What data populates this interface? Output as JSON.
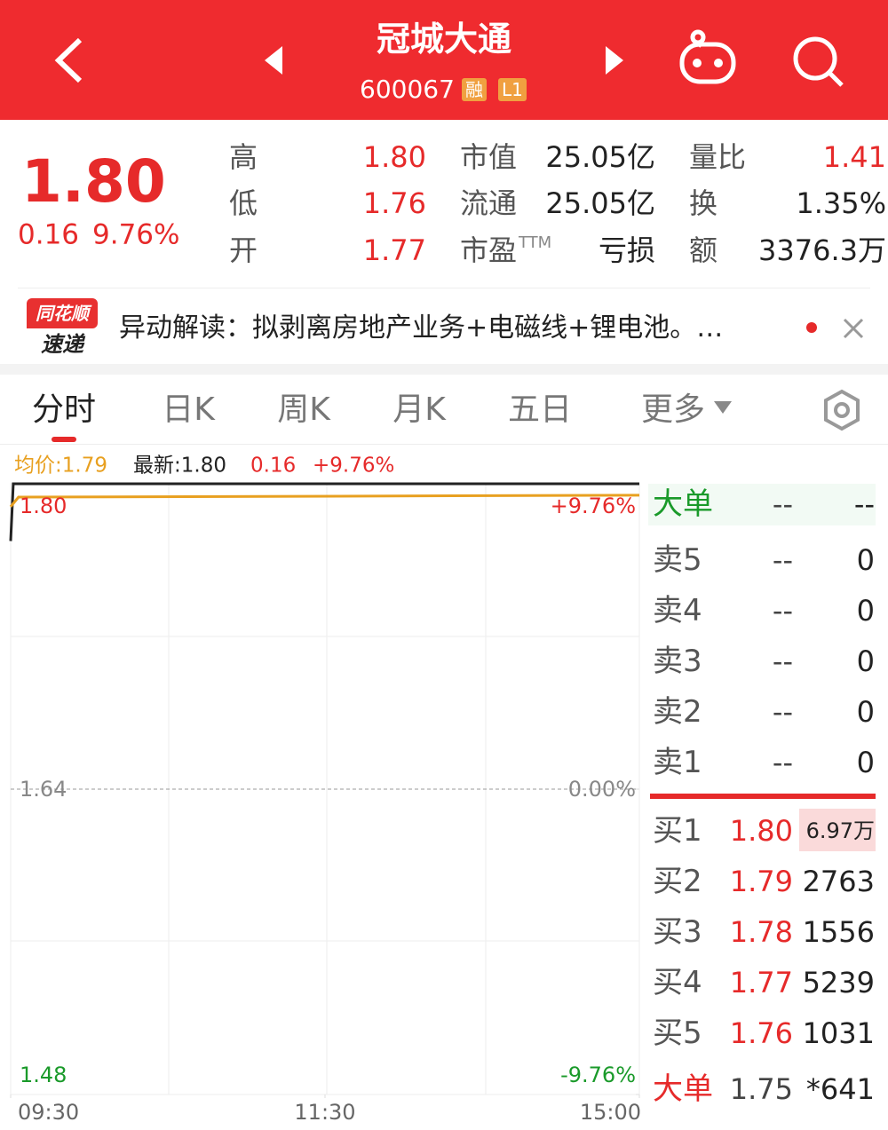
{
  "header": {
    "title": "冠城大通",
    "code": "600067",
    "badges": [
      "融",
      "L1"
    ]
  },
  "quote": {
    "price": "1.80",
    "change": "0.16",
    "change_pct": "9.76%"
  },
  "stats": [
    [
      {
        "label": "高",
        "value": "1.80"
      },
      {
        "label": "市值",
        "value": "25.05亿"
      },
      {
        "label": "量比",
        "value": "1.41"
      }
    ],
    [
      {
        "label": "低",
        "value": "1.76"
      },
      {
        "label": "流通",
        "value": "25.05亿"
      },
      {
        "label": "换",
        "value": "1.35%"
      }
    ],
    [
      {
        "label": "开",
        "value": "1.77"
      },
      {
        "label": "市盈",
        "sup": "TTM",
        "value": "亏损"
      },
      {
        "label": "额",
        "value": "3376.3万"
      }
    ]
  ],
  "news": {
    "brand": [
      "同花顺",
      "速递"
    ],
    "text": "异动解读：拟剥离房地产业务+电磁线+锂电池。…"
  },
  "tabs": [
    "分时",
    "日K",
    "周K",
    "月K",
    "五日",
    "更多"
  ],
  "legend": {
    "avg": "均价:1.79",
    "latest": "最新:1.80",
    "change": "0.16",
    "change_pct": "+9.76%"
  },
  "intraday": {
    "xlim": [
      0,
      240
    ],
    "ylim": [
      1.48,
      1.8
    ],
    "y2lim": [
      -9.76,
      9.76
    ],
    "xticks": [
      {
        "value": 0,
        "label": "09:30"
      },
      {
        "value": 120,
        "label": "11:30"
      },
      {
        "value": 240,
        "label": "15:00"
      }
    ],
    "yticks": [
      {
        "value": 1.8,
        "label": "1.80"
      },
      {
        "value": 1.64,
        "label": "1.64"
      },
      {
        "value": 1.48,
        "label": "1.48"
      }
    ],
    "y2ticks": [
      {
        "value": 9.76,
        "label": "+9.76%"
      },
      {
        "value": 0,
        "label": "0.00%"
      },
      {
        "value": -9.76,
        "label": "-9.76%"
      }
    ],
    "series": [
      {
        "name": "最新",
        "color": "#222222",
        "x": [
          0,
          1,
          240
        ],
        "values": [
          1.77,
          1.8,
          1.8
        ]
      },
      {
        "name": "均价",
        "color": "#e8a020",
        "x": [
          0,
          3,
          240
        ],
        "values": [
          1.788,
          1.793,
          1.794
        ]
      }
    ]
  },
  "orderbook": {
    "big_top": {
      "label": "大单",
      "price": "--",
      "volume": "--"
    },
    "asks": [
      {
        "label": "卖5",
        "price": "--",
        "volume": "0"
      },
      {
        "label": "卖4",
        "price": "--",
        "volume": "0"
      },
      {
        "label": "卖3",
        "price": "--",
        "volume": "0"
      },
      {
        "label": "卖2",
        "price": "--",
        "volume": "0"
      },
      {
        "label": "卖1",
        "price": "--",
        "volume": "0"
      }
    ],
    "bids": [
      {
        "label": "买1",
        "price": "1.80",
        "volume": "6.97万"
      },
      {
        "label": "买2",
        "price": "1.79",
        "volume": "2763"
      },
      {
        "label": "买3",
        "price": "1.78",
        "volume": "1556"
      },
      {
        "label": "买4",
        "price": "1.77",
        "volume": "5239"
      },
      {
        "label": "买5",
        "price": "1.76",
        "volume": "1031"
      }
    ],
    "big_bottom": {
      "label": "大单",
      "price": "1.75",
      "volume": "*641"
    }
  }
}
